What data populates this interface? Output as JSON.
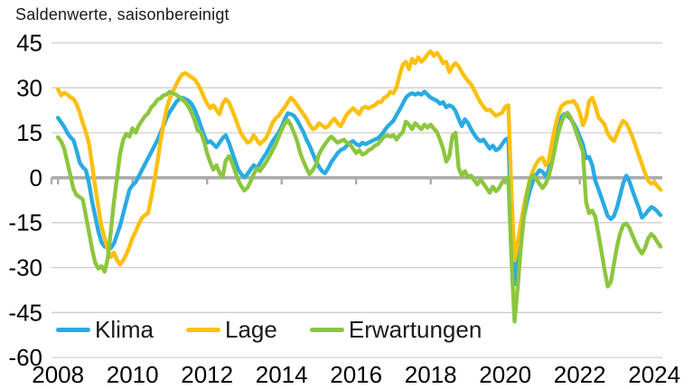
{
  "title": "Saldenwerte, saisonbereinigt",
  "legend": [
    {
      "label": "Klima",
      "color": "#29ABE2"
    },
    {
      "label": "Lage",
      "color": "#FDC011"
    },
    {
      "label": "Erwartungen",
      "color": "#8CC63F"
    }
  ],
  "colors": {
    "gridline": "#CDCDCD",
    "zero_line": "#ABABAB",
    "tick": "#ABABAB",
    "axis_text": "#000000",
    "title_text": "#1a1a1a",
    "background": "#ffffff"
  },
  "chart_data": {
    "type": "line",
    "title": "Saldenwerte, saisonbereinigt",
    "xlabel": "",
    "ylabel": "Saldenwerte, saisonbereinigt",
    "x_monthly_start": "2008-01",
    "x_monthly_end": "2024-03",
    "x_tick_labels": [
      "2008",
      "2010",
      "2012",
      "2014",
      "2016",
      "2018",
      "2020",
      "2022",
      "2024"
    ],
    "y_ticks": [
      45,
      30,
      15,
      0,
      -15,
      -30,
      -45,
      -60
    ],
    "ylim": [
      -60,
      45
    ],
    "grid": "horizontal",
    "legend_position": "bottom-left-inside",
    "series": [
      {
        "name": "Klima",
        "color": "#29ABE2",
        "values": [
          20,
          18.5,
          17,
          15,
          13.5,
          12.5,
          9,
          5,
          3.5,
          2.5,
          -2,
          -8,
          -13,
          -18,
          -21.5,
          -23,
          -22.5,
          -23.5,
          -22,
          -19,
          -16,
          -12,
          -8,
          -4,
          -2.5,
          -1.5,
          0.5,
          2.5,
          4.5,
          6.5,
          8.5,
          10.5,
          12.5,
          15,
          17.5,
          20,
          22,
          23.5,
          25.2,
          26.2,
          26.7,
          26.3,
          25.7,
          24.7,
          22.7,
          20.2,
          17.2,
          14.2,
          11.7,
          12.2,
          11.2,
          10.2,
          11.7,
          13.2,
          14.2,
          11.7,
          8.7,
          5.7,
          2.7,
          1.2,
          0.2,
          1.2,
          2.7,
          4.2,
          3.2,
          4.7,
          6.5,
          8,
          10,
          12,
          13.5,
          15,
          17,
          19.5,
          21.5,
          21.2,
          20.7,
          19.2,
          17.2,
          15.2,
          12.7,
          10.7,
          8.2,
          5.7,
          3.7,
          2.2,
          1.5,
          3.2,
          5.2,
          6.7,
          8.2,
          9.2,
          9.7,
          10.7,
          11.7,
          12.2,
          11.2,
          10.7,
          11.7,
          11.2,
          11.7,
          12.2,
          12.7,
          13.2,
          14.2,
          15.5,
          17,
          18,
          19,
          21,
          22.7,
          24.7,
          26.7,
          27.7,
          28.2,
          27.7,
          28.2,
          27.7,
          28.7,
          27.7,
          26.7,
          26.2,
          25.7,
          24.7,
          25.2,
          23.5,
          24.2,
          23.7,
          22.2,
          19.7,
          17.2,
          19.5,
          18.2,
          16.2,
          14.5,
          13,
          12.2,
          12.7,
          11.2,
          9.7,
          10.7,
          9.2,
          9.7,
          11.2,
          12.7,
          13.2,
          -17.5,
          -35.5,
          -27.5,
          -19.5,
          -13,
          -8,
          -4,
          -1,
          1,
          2.5,
          2,
          0.5,
          2.5,
          8.7,
          13.7,
          17.7,
          20.2,
          21.2,
          20.7,
          19.7,
          18.2,
          16.2,
          13.7,
          11.2,
          6.5,
          7,
          4.2,
          -1,
          -3.8,
          -6.8,
          -9.8,
          -12.8,
          -13.8,
          -12.8,
          -9.8,
          -5.8,
          -1.8,
          0.7,
          -1.3,
          -4.3,
          -7.3,
          -10,
          -13.3,
          -12.3,
          -11,
          -9.8,
          -10.3,
          -11.3,
          -12.5
        ]
      },
      {
        "name": "Lage",
        "color": "#FDC011",
        "values": [
          29.5,
          27.5,
          28.3,
          27.8,
          26.8,
          26.3,
          24.5,
          21.7,
          18.2,
          15.2,
          11.2,
          4.2,
          -3.3,
          -9.8,
          -16.3,
          -20,
          -24,
          -26.5,
          -25,
          -27.5,
          -29,
          -27.5,
          -25.5,
          -23,
          -20,
          -18,
          -15.5,
          -13.5,
          -12.5,
          -11.8,
          -6.8,
          -1,
          5.2,
          12,
          18.2,
          23.2,
          26.5,
          28.7,
          31,
          33,
          34.5,
          34.9,
          34.2,
          33.5,
          32.8,
          31.3,
          29.3,
          26.8,
          24.7,
          23.2,
          24.2,
          22.7,
          21.2,
          24.7,
          26.2,
          25.2,
          22.7,
          20.2,
          17.2,
          14.7,
          13.2,
          11.7,
          12.2,
          14.2,
          12.7,
          11.2,
          12.2,
          13.2,
          15.5,
          18.2,
          19.7,
          20.7,
          22.2,
          23.5,
          25.2,
          26.7,
          25.7,
          24.2,
          22.7,
          21.2,
          19.7,
          17.7,
          16.2,
          16.7,
          18.2,
          17.5,
          16.7,
          17.2,
          18.7,
          19.7,
          18.2,
          17.2,
          19.2,
          21.2,
          22.2,
          23.2,
          22.2,
          21.2,
          23.2,
          23.7,
          23.2,
          23.7,
          24.2,
          25.2,
          25.2,
          26.7,
          27.2,
          28.7,
          28.2,
          30.2,
          34.2,
          37.7,
          38.7,
          36.2,
          39.7,
          38.2,
          40.2,
          38.7,
          39.7,
          41.2,
          42.2,
          40.7,
          41.7,
          40.2,
          38.2,
          38.7,
          35.2,
          37.2,
          38.2,
          37.2,
          35.2,
          33.7,
          32.2,
          31.2,
          29.2,
          27.2,
          25.2,
          23.7,
          22.5,
          22.7,
          21.7,
          20.7,
          21.2,
          21.7,
          23.7,
          24.2,
          -5,
          -27.5,
          -21.5,
          -15.5,
          -9.5,
          -4.5,
          -0.5,
          2.5,
          4.7,
          6.2,
          6.7,
          4.2,
          5.7,
          11.7,
          16.7,
          20.7,
          23.7,
          24.7,
          25.2,
          25.2,
          25.7,
          24.2,
          21.7,
          17.5,
          20,
          25.5,
          26.7,
          24,
          20.2,
          19,
          17.7,
          14.7,
          13.2,
          12.2,
          14.7,
          17.2,
          19,
          18,
          16,
          13.5,
          10.5,
          7.5,
          4.5,
          1.5,
          -1,
          -2,
          -1.5,
          -2.8,
          -4
        ]
      },
      {
        "name": "Erwartungen",
        "color": "#8CC63F",
        "values": [
          13.5,
          12.2,
          9.7,
          5.2,
          0.7,
          -3.8,
          -5.8,
          -6.5,
          -7.3,
          -12.8,
          -18.3,
          -24,
          -28.5,
          -30.3,
          -29.5,
          -31.4,
          -27,
          -18,
          -8,
          0,
          8,
          12.7,
          14.7,
          13.7,
          16.5,
          15,
          17.5,
          19,
          20.5,
          21.5,
          23.5,
          24.5,
          26,
          26.5,
          27.5,
          27.8,
          28.7,
          28.2,
          27.7,
          27,
          26.2,
          25.2,
          23.7,
          21.7,
          19.2,
          15.7,
          15.2,
          12.2,
          8.2,
          5.2,
          2.7,
          4.2,
          1.7,
          0.2,
          5.7,
          7.2,
          5.2,
          2.2,
          -0.8,
          -2.8,
          -4.3,
          -3.3,
          -1.3,
          1.2,
          3.2,
          2.2,
          3.7,
          5.2,
          7,
          9,
          11,
          13.5,
          16,
          18,
          19.2,
          17.5,
          15,
          12.2,
          8.2,
          5.5,
          3.2,
          1.2,
          2.5,
          4.2,
          7.7,
          9.7,
          11.2,
          12.7,
          13.7,
          12.7,
          11.7,
          12.2,
          12.7,
          11.7,
          11.2,
          9.7,
          8.2,
          9.2,
          7.7,
          8.2,
          9.2,
          9.7,
          10.7,
          11.2,
          12.5,
          13.7,
          14.2,
          13.7,
          14.2,
          12.7,
          14.2,
          15.2,
          18.7,
          17.7,
          16.2,
          18.2,
          17.2,
          16.2,
          17.7,
          16.7,
          17.7,
          16.4,
          15.2,
          12.7,
          9.7,
          5.4,
          7.2,
          14,
          15,
          3.2,
          0.7,
          2.2,
          0.2,
          0.7,
          -0.8,
          -2.3,
          -0.5,
          -2,
          -3.5,
          -5,
          -3,
          -4.5,
          -3.5,
          -1.5,
          -0.5,
          0,
          -27.5,
          -48,
          -36.5,
          -23.5,
          -13,
          -5.5,
          -0.5,
          1,
          -0.5,
          -2,
          -3.5,
          -2,
          0.5,
          4.7,
          9.7,
          14.7,
          18.2,
          20.7,
          21.7,
          20.2,
          17.7,
          14.7,
          11.7,
          8.7,
          -8,
          -11.8,
          -11,
          -13,
          -18.8,
          -24.8,
          -30.8,
          -36.3,
          -34.8,
          -28.8,
          -22.8,
          -18.5,
          -15.8,
          -15.3,
          -16.8,
          -19.3,
          -21.8,
          -23.8,
          -25.3,
          -23.5,
          -20.3,
          -18.8,
          -19.8,
          -21.5,
          -23
        ]
      }
    ]
  }
}
